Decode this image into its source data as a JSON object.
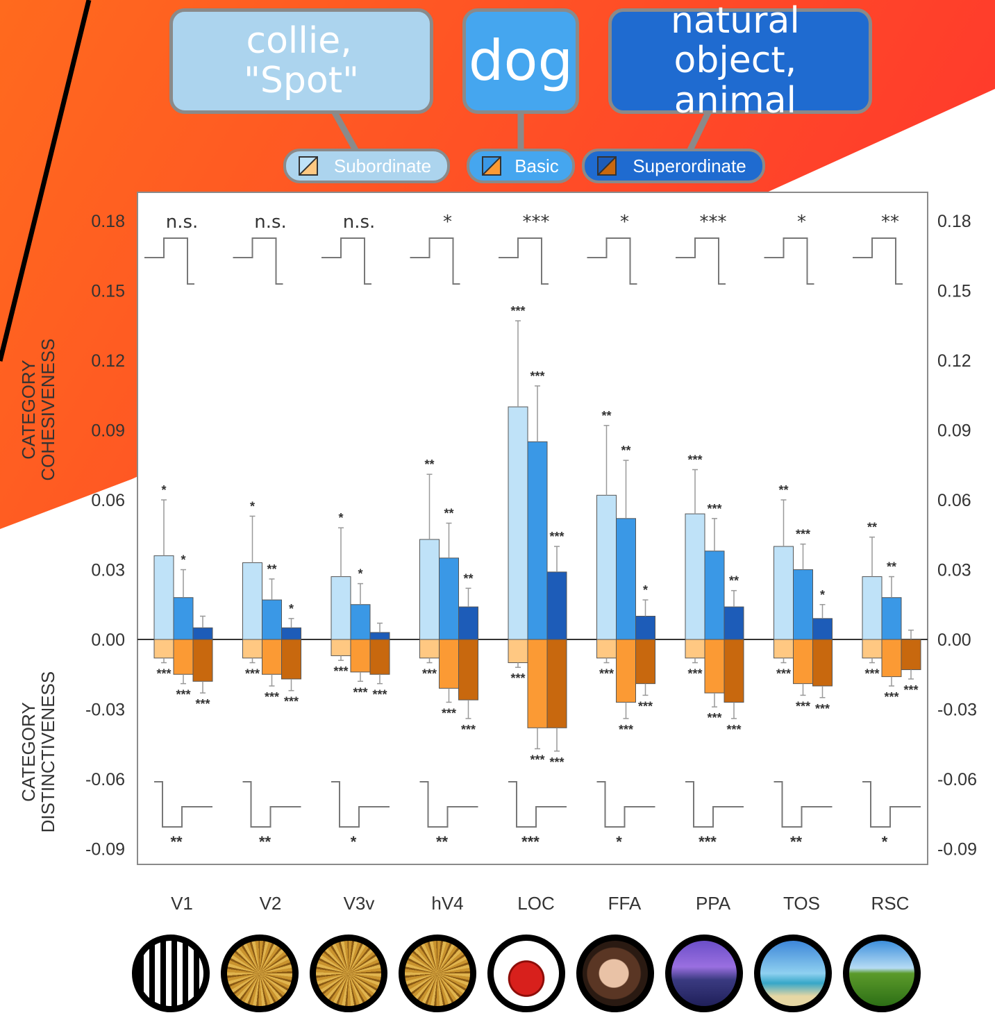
{
  "callouts": {
    "subordinate_lines": [
      "collie,",
      "\"Spot\""
    ],
    "basic": "dog",
    "superordinate_lines": [
      "natural object,",
      "animal"
    ]
  },
  "legend": {
    "subordinate": "Subordinate",
    "basic": "Basic",
    "superordinate": "Superordinate"
  },
  "y_label_top": [
    "CATEGORY",
    "COHESIVENESS"
  ],
  "y_label_bottom": [
    "CATEGORY",
    "DISTINCTIVENESS"
  ],
  "colors": {
    "background_red": "#ff3a2c",
    "background_orange": "#ff6a1e",
    "subordinate_cohesion": "#bfe2f8",
    "basic_cohesion": "#3a98e6",
    "superordinate_cohesion": "#1d5cb8",
    "subordinate_distinct": "#ffc882",
    "basic_distinct": "#fb9a34",
    "superordinate_distinct": "#c8680e"
  },
  "regions": [
    {
      "label": "V1",
      "image": "vertical-grating"
    },
    {
      "label": "V2",
      "image": "woven-texture"
    },
    {
      "label": "V3v",
      "image": "woven-texture"
    },
    {
      "label": "hV4",
      "image": "woven-texture"
    },
    {
      "label": "LOC",
      "image": "red-teapot"
    },
    {
      "label": "FFA",
      "image": "face"
    },
    {
      "label": "PPA",
      "image": "city-buildings"
    },
    {
      "label": "TOS",
      "image": "beach-palm"
    },
    {
      "label": "RSC",
      "image": "field-road"
    }
  ],
  "chart_data": {
    "type": "bar",
    "categories": [
      "V1",
      "V2",
      "V3v",
      "hV4",
      "LOC",
      "FFA",
      "PPA",
      "TOS",
      "RSC"
    ],
    "ylim": [
      -0.1,
      0.19
    ],
    "yticks": [
      "0.18",
      "0.15",
      "0.12",
      "0.09",
      "0.06",
      "0.03",
      "0.00",
      "-0.03",
      "-0.06",
      "-0.09"
    ],
    "series": [
      {
        "name": "Subordinate",
        "measure": "cohesiveness",
        "values": [
          0.036,
          0.033,
          0.027,
          0.043,
          0.1,
          0.062,
          0.054,
          0.04,
          0.027
        ],
        "errors": [
          0.024,
          0.02,
          0.021,
          0.028,
          0.037,
          0.03,
          0.019,
          0.02,
          0.017
        ],
        "stars": [
          "*",
          "*",
          "*",
          "**",
          "***",
          "**",
          "***",
          "**",
          "**"
        ]
      },
      {
        "name": "Basic",
        "measure": "cohesiveness",
        "values": [
          0.018,
          0.017,
          0.015,
          0.035,
          0.085,
          0.052,
          0.038,
          0.03,
          0.018
        ],
        "errors": [
          0.012,
          0.009,
          0.009,
          0.015,
          0.024,
          0.025,
          0.014,
          0.011,
          0.009
        ],
        "stars": [
          "*",
          "**",
          "*",
          "**",
          "***",
          "**",
          "***",
          "***",
          "**"
        ]
      },
      {
        "name": "Superordinate",
        "measure": "cohesiveness",
        "values": [
          0.005,
          0.005,
          0.003,
          0.014,
          0.029,
          0.01,
          0.014,
          0.009,
          0.0
        ],
        "errors": [
          0.005,
          0.004,
          0.004,
          0.008,
          0.011,
          0.007,
          0.007,
          0.006,
          0.004
        ],
        "stars": [
          "",
          "*",
          "",
          "**",
          "***",
          "*",
          "**",
          "*",
          ""
        ]
      },
      {
        "name": "Subordinate",
        "measure": "distinctiveness",
        "values": [
          -0.008,
          -0.008,
          -0.007,
          -0.008,
          -0.01,
          -0.008,
          -0.008,
          -0.008,
          -0.008
        ],
        "errors": [
          0.002,
          0.002,
          0.002,
          0.002,
          0.002,
          0.002,
          0.002,
          0.002,
          0.002
        ],
        "stars": [
          "***",
          "***",
          "***",
          "***",
          "***",
          "***",
          "***",
          "***",
          "***"
        ]
      },
      {
        "name": "Basic",
        "measure": "distinctiveness",
        "values": [
          -0.015,
          -0.015,
          -0.014,
          -0.021,
          -0.038,
          -0.027,
          -0.023,
          -0.019,
          -0.016
        ],
        "errors": [
          0.004,
          0.005,
          0.004,
          0.006,
          0.009,
          0.007,
          0.006,
          0.005,
          0.004
        ],
        "stars": [
          "***",
          "***",
          "***",
          "***",
          "***",
          "***",
          "***",
          "***",
          "***"
        ]
      },
      {
        "name": "Superordinate",
        "measure": "distinctiveness",
        "values": [
          -0.018,
          -0.017,
          -0.015,
          -0.026,
          -0.038,
          -0.019,
          -0.027,
          -0.02,
          -0.013
        ],
        "errors": [
          0.005,
          0.005,
          0.004,
          0.008,
          0.01,
          0.005,
          0.007,
          0.005,
          0.004
        ],
        "stars": [
          "***",
          "***",
          "***",
          "***",
          "***",
          "***",
          "***",
          "***",
          "***"
        ]
      }
    ],
    "cohesion_comparisons": [
      "n.s.",
      "n.s.",
      "n.s.",
      "*",
      "***",
      "*",
      "***",
      "*",
      "**"
    ],
    "distinctiveness_comparisons": [
      "**",
      "**",
      "*",
      "**",
      "***",
      "*",
      "***",
      "**",
      "*"
    ],
    "grid": false,
    "legend_position": "top"
  }
}
